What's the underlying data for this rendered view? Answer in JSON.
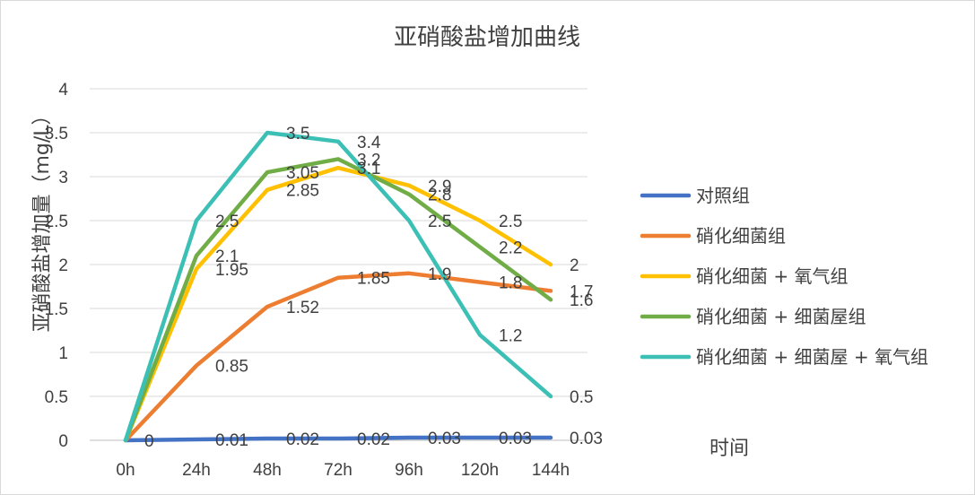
{
  "chart_data": {
    "type": "line",
    "title": "亚硝酸盐增加曲线",
    "xlabel": "时间",
    "ylabel": "亚硝酸盐增加量（mg/L）",
    "categories": [
      "0h",
      "24h",
      "48h",
      "72h",
      "96h",
      "120h",
      "144h"
    ],
    "ylim": [
      0,
      4
    ],
    "yticks": [
      "0",
      "0.5",
      "1",
      "1.5",
      "2",
      "2.5",
      "3",
      "3.5",
      "4"
    ],
    "grid": true,
    "legend_position": "right",
    "series": [
      {
        "name": "对照组",
        "color": "#4472c4",
        "values": [
          0,
          0.01,
          0.02,
          0.02,
          0.03,
          0.03,
          0.03
        ],
        "labels": [
          "0",
          "0.01",
          "0.02",
          "0.02",
          "0.03",
          "0.03",
          "0.03"
        ]
      },
      {
        "name": "硝化细菌组",
        "color": "#ed7d31",
        "values": [
          0,
          0.85,
          1.52,
          1.85,
          1.9,
          1.8,
          1.7
        ],
        "labels": [
          "",
          "0.85",
          "1.52",
          "1.85",
          "1.9",
          "1.8",
          "1.7"
        ]
      },
      {
        "name": "硝化细菌 + 氧气组",
        "color": "#ffc000",
        "values": [
          0,
          1.95,
          2.85,
          3.1,
          2.9,
          2.5,
          2
        ],
        "labels": [
          "",
          "1.95",
          "2.85",
          "3.1",
          "2.9",
          "2.5",
          "2"
        ]
      },
      {
        "name": "硝化细菌 + 细菌屋组",
        "color": "#70ad47",
        "values": [
          0,
          2.1,
          3.05,
          3.2,
          2.8,
          2.2,
          1.6
        ],
        "labels": [
          "",
          "2.1",
          "3.05",
          "3.2",
          "2.8",
          "2.2",
          "1.6"
        ]
      },
      {
        "name": "硝化细菌 + 细菌屋 + 氧气组",
        "color": "#3cbfb5",
        "values": [
          0,
          2.5,
          3.5,
          3.4,
          2.5,
          1.2,
          0.5
        ],
        "labels": [
          "",
          "2.5",
          "3.5",
          "3.4",
          "2.5",
          "1.2",
          "0.5"
        ]
      }
    ]
  }
}
